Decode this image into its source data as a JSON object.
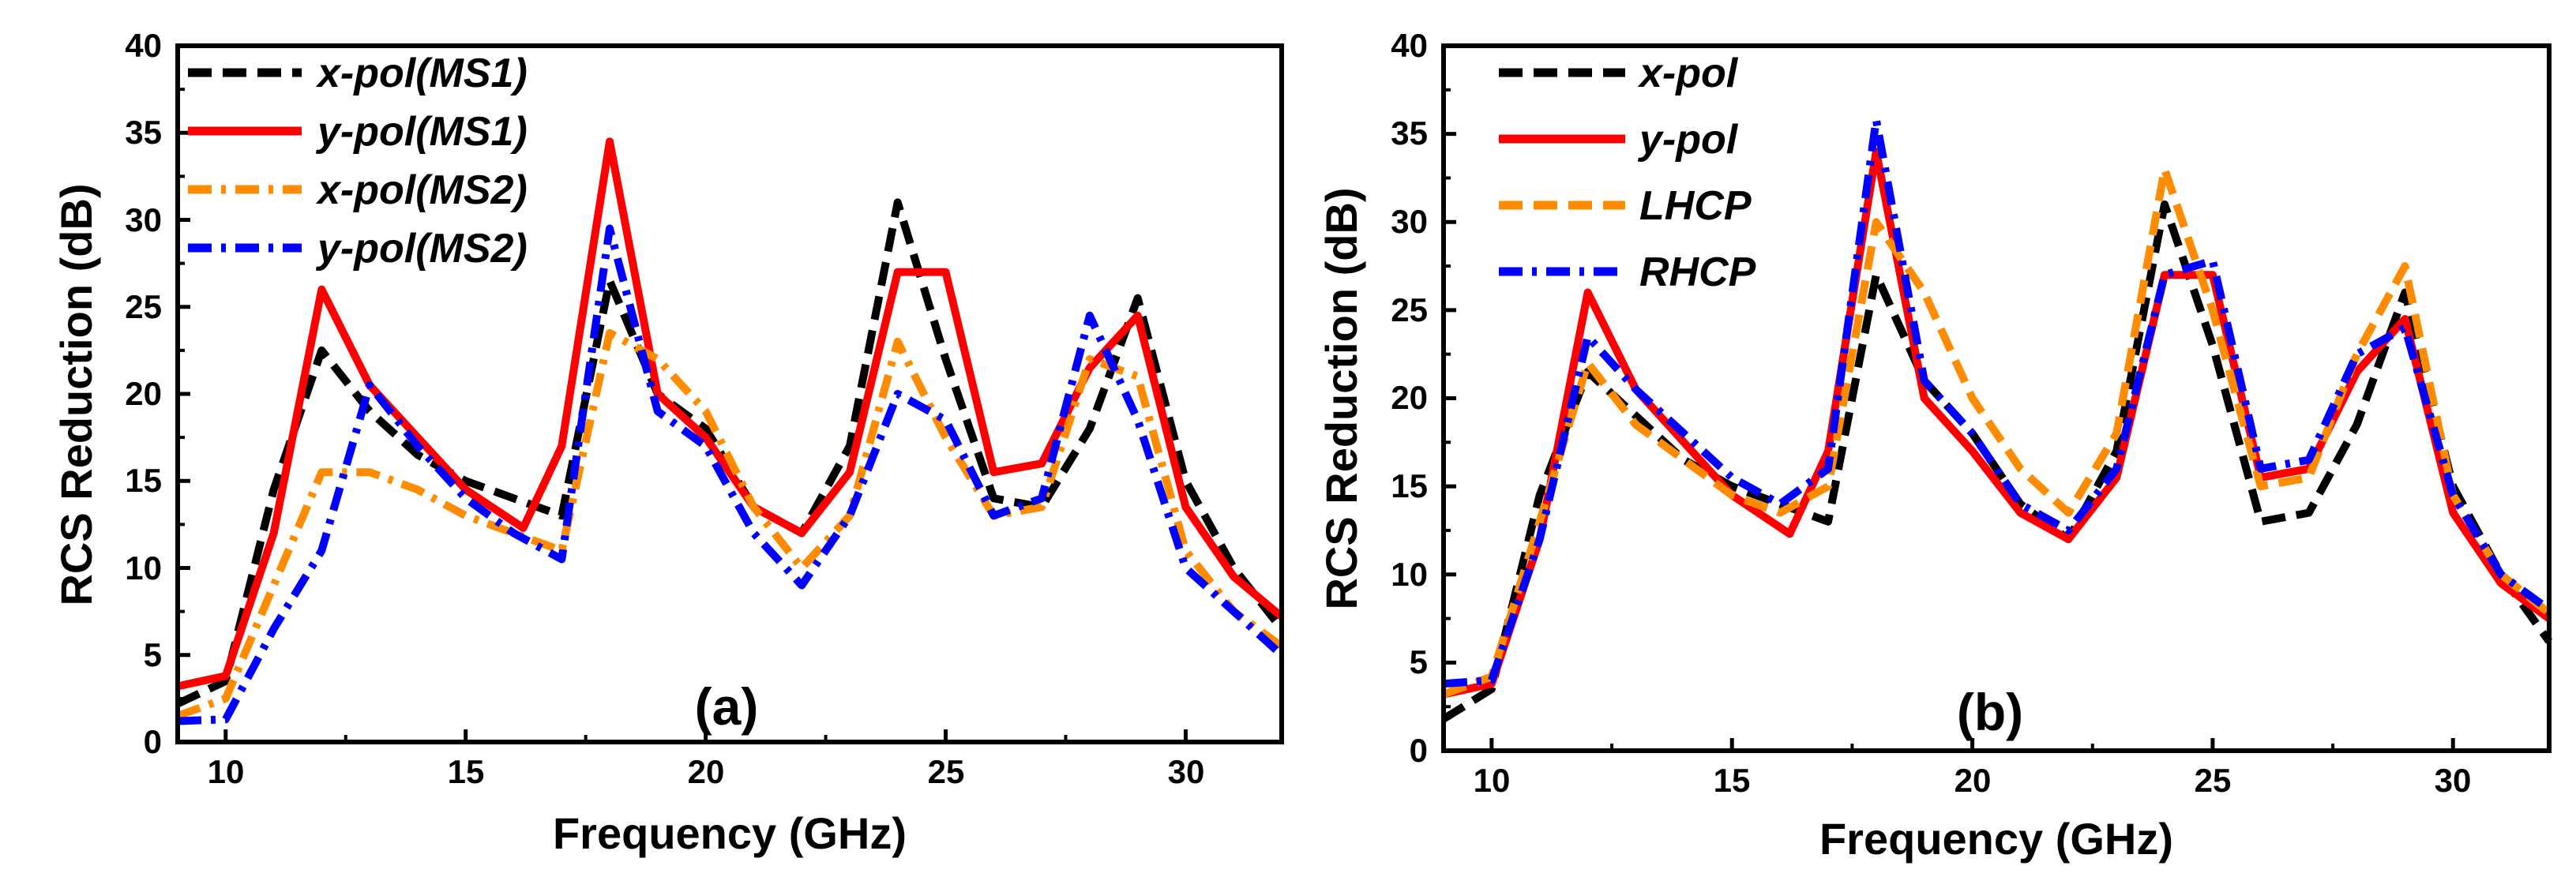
{
  "colors": {
    "black": "#000000",
    "red": "#ff0000",
    "orange": "#ff8c00",
    "blue": "#0000ff"
  },
  "chart_data": [
    {
      "type": "line",
      "panel_label": "(a)",
      "xlabel": "Frequency (GHz)",
      "ylabel": "RCS Reduction (dB)",
      "xlim": [
        9,
        32
      ],
      "ylim": [
        0,
        40
      ],
      "xticks": [
        "10",
        "15",
        "20",
        "25",
        "30"
      ],
      "yticks": [
        "0",
        "5",
        "10",
        "15",
        "20",
        "25",
        "30",
        "35",
        "40"
      ],
      "legend_position": "top-left",
      "series": [
        {
          "name": "x-pol(MS1)",
          "color": "#000000",
          "style": "dash",
          "x": [
            9,
            10,
            11,
            12,
            13,
            14,
            15,
            16,
            17,
            18,
            19,
            20,
            21,
            22,
            23,
            24,
            25,
            26,
            27,
            28,
            29,
            30,
            31,
            32
          ],
          "y": [
            2.2,
            3.5,
            14.5,
            22.5,
            19,
            16.5,
            15,
            14,
            13,
            26.5,
            20,
            18,
            13.5,
            12,
            17,
            31,
            22,
            14,
            13.5,
            18,
            25.5,
            15,
            10,
            6.5
          ]
        },
        {
          "name": "y-pol(MS1)",
          "color": "#ff0000",
          "style": "solid",
          "x": [
            9,
            10,
            11,
            12,
            13,
            14,
            15,
            16.2,
            17,
            18,
            19,
            20,
            21,
            22,
            23,
            24,
            25,
            26,
            27,
            28,
            29,
            30,
            31,
            32
          ],
          "y": [
            3.2,
            3.8,
            12,
            26,
            20.5,
            17.5,
            14.5,
            12.3,
            17,
            34.5,
            20,
            17.5,
            13.5,
            12,
            15.5,
            27,
            27,
            15.5,
            16,
            21.5,
            24.5,
            13.5,
            9.5,
            7.2
          ]
        },
        {
          "name": "x-pol(MS2)",
          "color": "#ff8c00",
          "style": "dashdot",
          "x": [
            9,
            10,
            11,
            12,
            13,
            14,
            15,
            16,
            17,
            18,
            19,
            20,
            21,
            22,
            23,
            24,
            25,
            26,
            27,
            28,
            29,
            30,
            31,
            32
          ],
          "y": [
            1.5,
            2.5,
            9,
            15.5,
            15.5,
            14.5,
            13,
            12,
            11,
            23.5,
            22,
            19,
            13.5,
            10,
            13,
            23,
            17.5,
            13,
            13.5,
            22,
            21,
            11,
            7.5,
            5.5
          ]
        },
        {
          "name": "y-pol(MS2)",
          "color": "#0000ff",
          "style": "dashdot",
          "x": [
            9,
            10,
            11,
            12,
            13,
            14,
            15,
            16,
            17,
            18,
            19,
            20,
            21,
            22,
            23,
            24,
            25,
            26,
            27,
            28,
            29,
            30,
            31,
            32
          ],
          "y": [
            1.2,
            1.3,
            6.5,
            11,
            20.5,
            17,
            14,
            12,
            10.5,
            29.5,
            19,
            17,
            12,
            9,
            13,
            20,
            18.5,
            13,
            14,
            24.5,
            18.5,
            10,
            7.5,
            5
          ]
        }
      ]
    },
    {
      "type": "line",
      "panel_label": "(b)",
      "xlabel": "Frequency (GHz)",
      "ylabel": "RCS Reduction (dB)",
      "xlim": [
        9,
        32
      ],
      "ylim": [
        0,
        40
      ],
      "xticks": [
        "10",
        "15",
        "20",
        "25",
        "30"
      ],
      "yticks": [
        "0",
        "5",
        "10",
        "15",
        "20",
        "25",
        "30",
        "35",
        "40"
      ],
      "legend_position": "top-left",
      "series": [
        {
          "name": "x-pol",
          "color": "#000000",
          "style": "dash",
          "x": [
            9,
            10,
            11,
            12,
            13,
            14,
            15,
            16,
            17,
            18,
            19,
            20,
            21,
            22,
            23,
            24,
            25,
            26,
            27,
            28,
            29,
            30,
            31,
            32
          ],
          "y": [
            1.8,
            3.5,
            14.5,
            21.5,
            19,
            16.5,
            15,
            14,
            13,
            27,
            21,
            18,
            14,
            12,
            17,
            31,
            23,
            13,
            13.5,
            18.5,
            26,
            15,
            10,
            6.2
          ]
        },
        {
          "name": "y-pol",
          "color": "#ff0000",
          "style": "solid",
          "x": [
            9,
            10,
            11,
            12,
            13,
            14,
            15,
            16.2,
            17,
            18,
            19,
            20,
            21,
            22,
            23,
            24,
            25,
            26,
            27,
            28,
            29,
            30,
            31,
            32
          ],
          "y": [
            3.2,
            3.8,
            12,
            26,
            20.5,
            17.5,
            14.5,
            12.3,
            17,
            34,
            20,
            17,
            13.5,
            12,
            15.5,
            27,
            27,
            15.5,
            16,
            21.5,
            24.5,
            13.5,
            9.5,
            7.5
          ]
        },
        {
          "name": "LHCP",
          "color": "#ff8c00",
          "style": "dash",
          "x": [
            9,
            10,
            11,
            12,
            13,
            14,
            15,
            16,
            17,
            18,
            19,
            20,
            21,
            22,
            23,
            24,
            25,
            26,
            27,
            28,
            29,
            30,
            31,
            32
          ],
          "y": [
            3.2,
            4.2,
            13,
            22,
            18.5,
            16.5,
            14.5,
            13.5,
            15,
            30,
            26,
            20,
            16,
            13.5,
            18,
            33,
            25,
            15,
            15.5,
            22.5,
            27.5,
            14.5,
            10,
            7.8
          ]
        },
        {
          "name": "RHCP",
          "color": "#0000ff",
          "style": "dashdot",
          "x": [
            9,
            10,
            11,
            12,
            13,
            14,
            15,
            16,
            17,
            18,
            19,
            20,
            21,
            22,
            23,
            24,
            25,
            26,
            27,
            28,
            29,
            30,
            31,
            32
          ],
          "y": [
            3.8,
            4,
            12,
            23.5,
            20.5,
            18,
            15.5,
            14,
            16,
            35.8,
            21,
            18,
            14,
            12.5,
            16,
            27,
            27.8,
            16,
            16.5,
            22.5,
            24,
            14.5,
            10,
            8
          ]
        }
      ]
    }
  ]
}
